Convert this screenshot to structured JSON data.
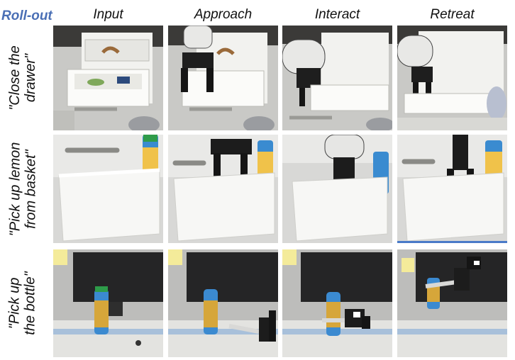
{
  "corner_label": "Roll-out",
  "columns": [
    "Input",
    "Approach",
    "Interact",
    "Retreat"
  ],
  "rows": [
    {
      "label": "\"Close the\ndrawer\"",
      "scene": "drawer"
    },
    {
      "label": "\"Pick up lemon\nfrom basket\"",
      "scene": "basket"
    },
    {
      "label": "\"Pick up\nthe bottle\"",
      "scene": "bottle"
    }
  ]
}
